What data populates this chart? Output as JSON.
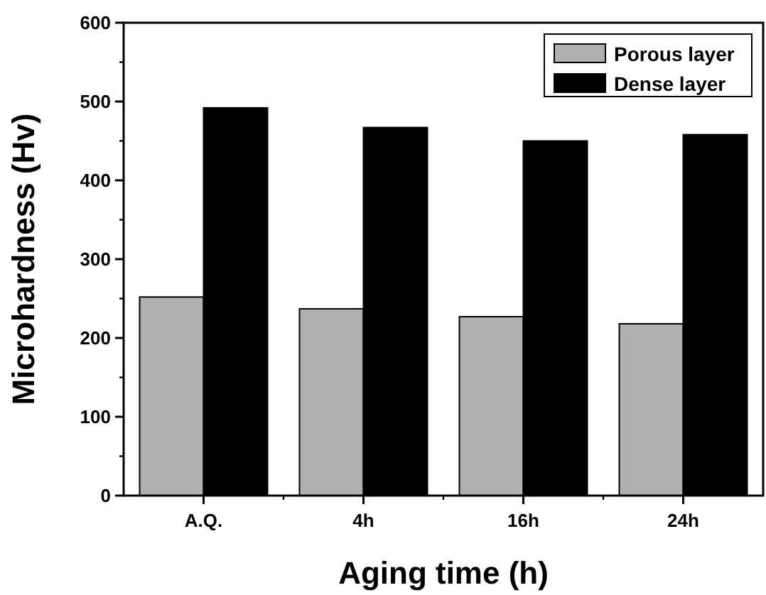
{
  "chart_data": {
    "type": "bar",
    "xlabel": "Aging time (h)",
    "ylabel": "Microhardness (Hv)",
    "categories": [
      "A.Q.",
      "4h",
      "16h",
      "24h"
    ],
    "series": [
      {
        "name": "Porous layer",
        "color": "#b0b0b0",
        "values": [
          252,
          237,
          227,
          218
        ]
      },
      {
        "name": "Dense layer",
        "color": "#000000",
        "values": [
          492,
          467,
          450,
          458
        ]
      }
    ],
    "ylim": [
      0,
      600
    ],
    "yticks": [
      0,
      100,
      200,
      300,
      400,
      500,
      600
    ],
    "legend": "top right"
  }
}
